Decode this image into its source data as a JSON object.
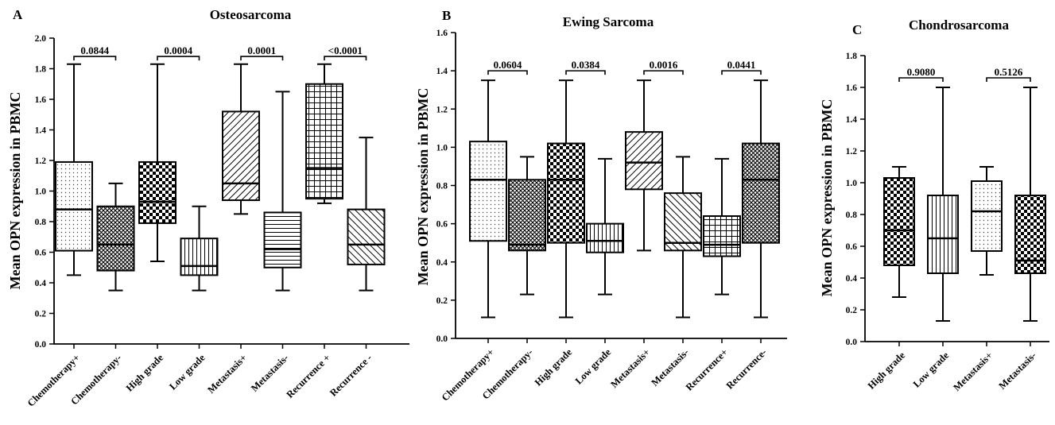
{
  "chart_data": [
    {
      "type": "boxplot",
      "letter": "A",
      "title": "Osteosarcoma",
      "ylabel": "Mean OPN expression in PBMC",
      "ylim": [
        0,
        2.0
      ],
      "yticks": [
        "0.0",
        "0.2",
        "0.4",
        "0.6",
        "0.8",
        "1.0",
        "1.2",
        "1.4",
        "1.6",
        "1.8",
        "2.0"
      ],
      "categories": [
        "Chemotherapy+",
        "Chemotherapy-",
        "High grade",
        "Low grade",
        "Metastasis+",
        "Metastasis-",
        "Recurrence +",
        "Recurrence -"
      ],
      "boxes": [
        {
          "min": 0.45,
          "q1": 0.61,
          "median": 0.88,
          "q3": 1.19,
          "max": 1.83,
          "pattern": "dots"
        },
        {
          "min": 0.35,
          "q1": 0.48,
          "median": 0.65,
          "q3": 0.9,
          "max": 1.05,
          "pattern": "crosshatch"
        },
        {
          "min": 0.54,
          "q1": 0.79,
          "median": 0.93,
          "q3": 1.19,
          "max": 1.83,
          "pattern": "checker"
        },
        {
          "min": 0.35,
          "q1": 0.45,
          "median": 0.51,
          "q3": 0.69,
          "max": 0.9,
          "pattern": "vlines"
        },
        {
          "min": 0.85,
          "q1": 0.94,
          "median": 1.05,
          "q3": 1.52,
          "max": 1.83,
          "pattern": "fdiag"
        },
        {
          "min": 0.35,
          "q1": 0.5,
          "median": 0.62,
          "q3": 0.86,
          "max": 1.65,
          "pattern": "hlines"
        },
        {
          "min": 0.92,
          "q1": 0.95,
          "median": 1.15,
          "q3": 1.7,
          "max": 1.83,
          "pattern": "grid"
        },
        {
          "min": 0.35,
          "q1": 0.52,
          "median": 0.65,
          "q3": 0.88,
          "max": 1.35,
          "pattern": "bdiag"
        }
      ],
      "comparisons": [
        {
          "between": [
            0,
            1
          ],
          "y": 1.88,
          "label": "0.0844"
        },
        {
          "between": [
            2,
            3
          ],
          "y": 1.88,
          "label": "0.0004"
        },
        {
          "between": [
            4,
            5
          ],
          "y": 1.88,
          "label": "0.0001"
        },
        {
          "between": [
            6,
            7
          ],
          "y": 1.88,
          "label": "<0.0001"
        }
      ]
    },
    {
      "type": "boxplot",
      "letter": "B",
      "title": "Ewing Sarcoma",
      "ylabel": "Mean OPN expression in PBMC",
      "ylim": [
        0,
        1.6
      ],
      "yticks": [
        "0.0",
        "0.2",
        "0.4",
        "0.6",
        "0.8",
        "1.0",
        "1.2",
        "1.4",
        "1.6"
      ],
      "categories": [
        "Chemotherapy+",
        "Chemotherapy-",
        "High grade",
        "Low grade",
        "Metastasis+",
        "Metastasis-",
        "Recurrence+",
        "Recurrence-"
      ],
      "boxes": [
        {
          "min": 0.11,
          "q1": 0.51,
          "median": 0.83,
          "q3": 1.03,
          "max": 1.35,
          "pattern": "dots"
        },
        {
          "min": 0.23,
          "q1": 0.46,
          "median": 0.49,
          "q3": 0.83,
          "max": 0.95,
          "pattern": "crosshatch"
        },
        {
          "min": 0.11,
          "q1": 0.5,
          "median": 0.83,
          "q3": 1.02,
          "max": 1.35,
          "pattern": "checker"
        },
        {
          "min": 0.23,
          "q1": 0.45,
          "median": 0.51,
          "q3": 0.6,
          "max": 0.94,
          "pattern": "vlines"
        },
        {
          "min": 0.46,
          "q1": 0.78,
          "median": 0.92,
          "q3": 1.08,
          "max": 1.35,
          "pattern": "fdiag"
        },
        {
          "min": 0.11,
          "q1": 0.46,
          "median": 0.5,
          "q3": 0.76,
          "max": 0.95,
          "pattern": "bdiag"
        },
        {
          "min": 0.23,
          "q1": 0.43,
          "median": 0.49,
          "q3": 0.64,
          "max": 0.94,
          "pattern": "grid"
        },
        {
          "min": 0.11,
          "q1": 0.5,
          "median": 0.83,
          "q3": 1.02,
          "max": 1.35,
          "pattern": "crosshatch"
        }
      ],
      "comparisons": [
        {
          "between": [
            0,
            1
          ],
          "y": 1.4,
          "label": "0.0604"
        },
        {
          "between": [
            2,
            3
          ],
          "y": 1.4,
          "label": "0.0384"
        },
        {
          "between": [
            4,
            5
          ],
          "y": 1.4,
          "label": "0.0016"
        },
        {
          "between": [
            6,
            7
          ],
          "y": 1.4,
          "label": "0.0441"
        }
      ]
    },
    {
      "type": "boxplot",
      "letter": "C",
      "title": "Chondrosarcoma",
      "ylabel": "Mean OPN expression in PBMC",
      "ylim": [
        0,
        1.8
      ],
      "yticks": [
        "0.0",
        "0.2",
        "0.4",
        "0.6",
        "0.8",
        "1.0",
        "1.2",
        "1.4",
        "1.6",
        "1.8"
      ],
      "categories": [
        "High grade",
        "Low grade",
        "Metastasis+",
        "Metastasis-"
      ],
      "boxes": [
        {
          "min": 0.28,
          "q1": 0.48,
          "median": 0.7,
          "q3": 1.03,
          "max": 1.1,
          "pattern": "checker"
        },
        {
          "min": 0.13,
          "q1": 0.43,
          "median": 0.65,
          "q3": 0.92,
          "max": 1.6,
          "pattern": "vlines"
        },
        {
          "min": 0.42,
          "q1": 0.57,
          "median": 0.82,
          "q3": 1.01,
          "max": 1.1,
          "pattern": "dots"
        },
        {
          "min": 0.13,
          "q1": 0.43,
          "median": 0.51,
          "q3": 0.92,
          "max": 1.6,
          "pattern": "checker"
        }
      ],
      "comparisons": [
        {
          "between": [
            0,
            1
          ],
          "y": 1.66,
          "label": "0.9080"
        },
        {
          "between": [
            2,
            3
          ],
          "y": 1.66,
          "label": "0.5126"
        }
      ]
    }
  ]
}
